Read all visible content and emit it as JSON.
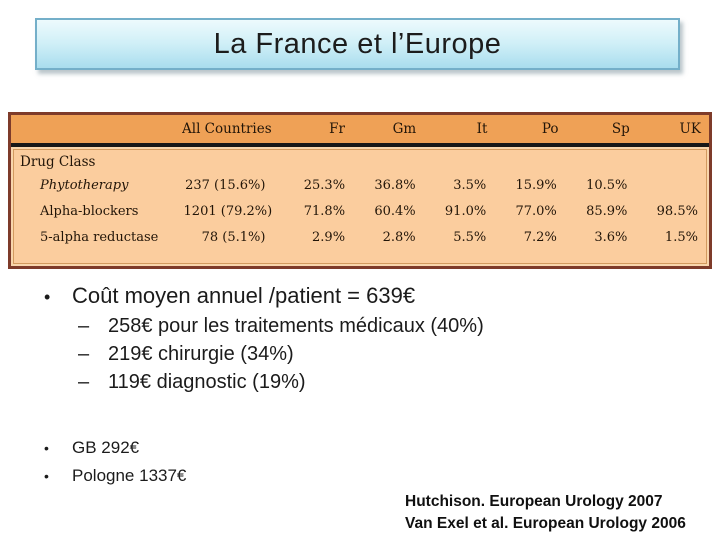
{
  "title": "La France et l’Europe",
  "table": {
    "columns": [
      "",
      "All Countries",
      "Fr",
      "Gm",
      "It",
      "Po",
      "Sp",
      "UK"
    ],
    "group_label": "Drug Class",
    "rows": [
      {
        "label": "Phytotherapy",
        "values": [
          "237 (15.6%)",
          "25.3%",
          "36.8%",
          "3.5%",
          "15.9%",
          "10.5%",
          ""
        ]
      },
      {
        "label": "Alpha-blockers",
        "values": [
          "1201 (79.2%)",
          "71.8%",
          "60.4%",
          "91.0%",
          "77.0%",
          "85.9%",
          "98.5%"
        ]
      },
      {
        "label": "5-alpha reductase",
        "values": [
          "78 (5.1%)",
          "2.9%",
          "2.8%",
          "5.5%",
          "7.2%",
          "3.6%",
          "1.5%"
        ]
      }
    ]
  },
  "bullets": {
    "main": "Coût moyen annuel /patient = 639€",
    "subs": [
      "258€ pour les traitements médicaux (40%)",
      "219€ chirurgie (34%)",
      "119€ diagnostic (19%)"
    ],
    "extra": [
      "GB 292€",
      "Pologne 1337€"
    ]
  },
  "citations": [
    "Hutchison. European Urology 2007",
    "Van Exel et al. European Urology 2006"
  ],
  "colors": {
    "title_border": "#74AFC9",
    "title_bg_top": "#EDFAFD",
    "title_bg_bottom": "#A9DDEE",
    "table_header_bg": "#EFA156",
    "table_body_bg": "#FBCD9E",
    "table_border": "#7E3B2A"
  }
}
